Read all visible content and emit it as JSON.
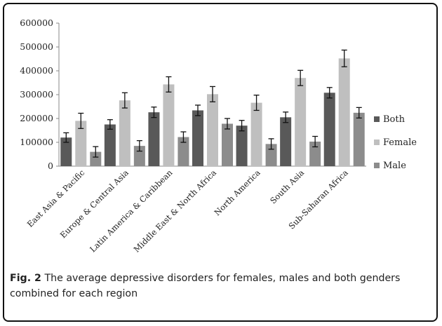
{
  "chart_data": {
    "type": "bar",
    "categories": [
      "East Asia & Pacific",
      "Europe & Central Asia",
      "Latin America & Caribbean",
      "Middle East & North Africa",
      "North America",
      "South Asia",
      "Sub-Saharan Africa"
    ],
    "series": [
      {
        "name": "Both",
        "color": "#595959",
        "values": [
          120000,
          175000,
          226000,
          234000,
          170000,
          205000,
          308000
        ],
        "error": [
          20000,
          20000,
          22000,
          22000,
          22000,
          22000,
          22000
        ]
      },
      {
        "name": "Female",
        "color": "#bfbfbf",
        "values": [
          190000,
          276000,
          343000,
          302000,
          266000,
          370000,
          452000
        ],
        "error": [
          32000,
          32000,
          32000,
          32000,
          32000,
          32000,
          35000
        ]
      },
      {
        "name": "Male",
        "color": "#8c8c8c",
        "values": [
          60000,
          85000,
          122000,
          178000,
          93000,
          103000,
          224000
        ],
        "error": [
          22000,
          22000,
          22000,
          22000,
          22000,
          22000,
          22000
        ]
      }
    ],
    "ylim": [
      0,
      600000
    ],
    "yticks": [
      "0",
      "100000",
      "200000",
      "300000",
      "400000",
      "500000",
      "600000"
    ],
    "legend_position": "right",
    "grid": false
  },
  "caption": {
    "label": "Fig. 2",
    "text": "The average depressive disorders for females, males and both genders combined for each region"
  }
}
